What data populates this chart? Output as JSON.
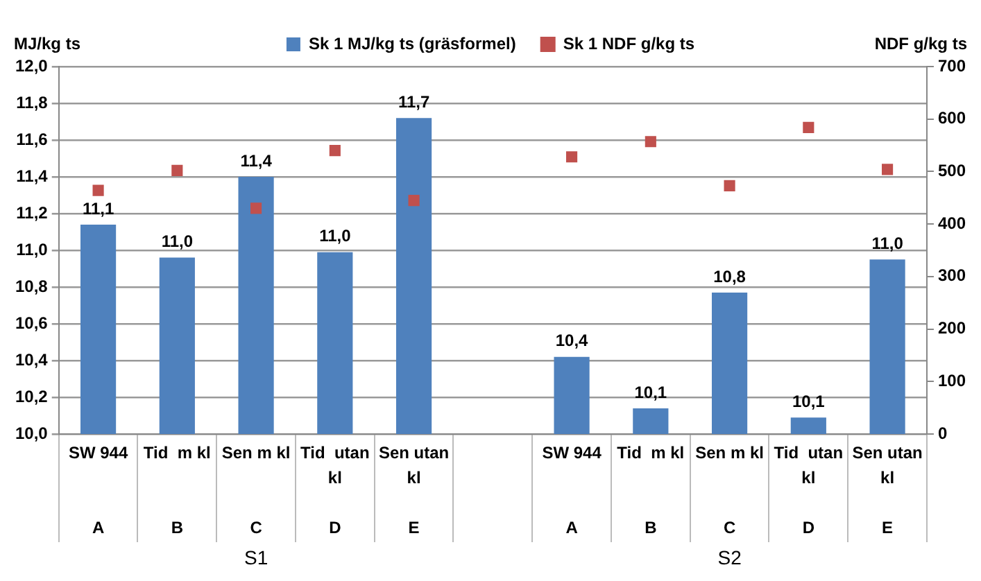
{
  "chart_data": {
    "type": "bar",
    "ylabel": "MJ/kg ts",
    "y2label": "NDF g/kg ts",
    "categories": [
      "SW 944\nA",
      "Tid  m kl\nB",
      "Sen m kl\nC",
      "Tid  utan kl\nD",
      "Sen utan kl\nE",
      null,
      "SW 944\nA",
      "Tid  m kl\nB",
      "Sen m kl\nC",
      "Tid  utan kl\nD",
      "Sen utan kl\nE"
    ],
    "series": [
      {
        "name": "Sk 1 MJ/kg ts (gräsformel)",
        "color": "#4f81bd",
        "values": [
          11.14,
          10.96,
          11.4,
          10.99,
          11.72,
          null,
          10.42,
          10.14,
          10.77,
          10.09,
          10.95
        ],
        "value_labels": [
          "11,1",
          "11,0",
          "11,4",
          "11,0",
          "11,7",
          null,
          "10,4",
          "10,1",
          "10,8",
          "10,1",
          "11,0"
        ]
      },
      {
        "name": "Sk 1 NDF g/kg ts",
        "type": "scatter",
        "axis": "y2",
        "color": "#c0504d",
        "values": [
          464,
          502,
          430,
          540,
          445,
          null,
          528,
          557,
          473,
          584,
          504
        ]
      }
    ],
    "ylim": [
      10,
      12
    ],
    "yticks": [
      {
        "value": 10,
        "label": "10,0"
      },
      {
        "value": 10.2,
        "label": "10,2"
      },
      {
        "value": 10.4,
        "label": "10,4"
      },
      {
        "value": 10.6,
        "label": "10,6"
      },
      {
        "value": 10.8,
        "label": "10,8"
      },
      {
        "value": 11,
        "label": "11,0"
      },
      {
        "value": 11.2,
        "label": "11,2"
      },
      {
        "value": 11.4,
        "label": "11,4"
      },
      {
        "value": 11.6,
        "label": "11,6"
      },
      {
        "value": 11.8,
        "label": "11,8"
      },
      {
        "value": 12,
        "label": "12,0"
      }
    ],
    "y2lim": [
      0,
      700
    ],
    "y2ticks": [
      0,
      100,
      200,
      300,
      400,
      500,
      600,
      700
    ],
    "annotations": [
      "S1",
      "S2"
    ],
    "grid": "y",
    "legend": "top",
    "marker": "square"
  }
}
